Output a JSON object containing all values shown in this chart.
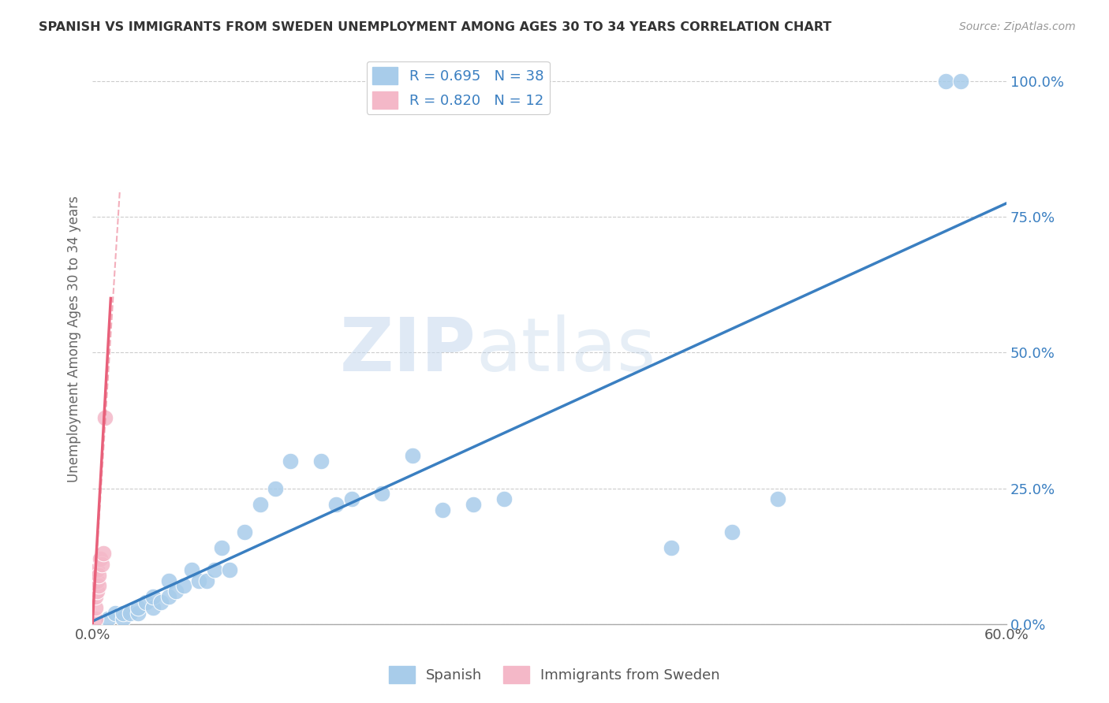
{
  "title": "SPANISH VS IMMIGRANTS FROM SWEDEN UNEMPLOYMENT AMONG AGES 30 TO 34 YEARS CORRELATION CHART",
  "source": "Source: ZipAtlas.com",
  "ylabel": "Unemployment Among Ages 30 to 34 years",
  "xlim": [
    0.0,
    0.6
  ],
  "ylim": [
    0.0,
    1.05
  ],
  "xticks": [
    0.0,
    0.1,
    0.2,
    0.3,
    0.4,
    0.5,
    0.6
  ],
  "xtick_labels": [
    "0.0%",
    "",
    "",
    "",
    "",
    "",
    "60.0%"
  ],
  "yticks": [
    0.0,
    0.25,
    0.5,
    0.75,
    1.0
  ],
  "ytick_labels": [
    "0.0%",
    "25.0%",
    "50.0%",
    "75.0%",
    "100.0%"
  ],
  "watermark_zip": "ZIP",
  "watermark_atlas": "atlas",
  "legend_blue_label": "R = 0.695   N = 38",
  "legend_pink_label": "R = 0.820   N = 12",
  "legend_bottom_blue": "Spanish",
  "legend_bottom_pink": "Immigrants from Sweden",
  "blue_color": "#a8ccea",
  "pink_color": "#f4b8c8",
  "line_blue_color": "#3a7fc1",
  "line_pink_color": "#e8607a",
  "text_color": "#3a7fc1",
  "blue_points_x": [
    0.01,
    0.015,
    0.02,
    0.02,
    0.025,
    0.03,
    0.03,
    0.035,
    0.04,
    0.04,
    0.045,
    0.05,
    0.05,
    0.055,
    0.06,
    0.065,
    0.07,
    0.075,
    0.08,
    0.085,
    0.09,
    0.1,
    0.11,
    0.12,
    0.13,
    0.15,
    0.16,
    0.17,
    0.19,
    0.21,
    0.23,
    0.25,
    0.27,
    0.38,
    0.42,
    0.45,
    0.56,
    0.57
  ],
  "blue_points_y": [
    0.01,
    0.02,
    0.01,
    0.02,
    0.02,
    0.02,
    0.03,
    0.04,
    0.03,
    0.05,
    0.04,
    0.05,
    0.08,
    0.06,
    0.07,
    0.1,
    0.08,
    0.08,
    0.1,
    0.14,
    0.1,
    0.17,
    0.22,
    0.25,
    0.3,
    0.3,
    0.22,
    0.23,
    0.24,
    0.31,
    0.21,
    0.22,
    0.23,
    0.14,
    0.17,
    0.23,
    1.0,
    1.0
  ],
  "pink_points_x": [
    0.002,
    0.002,
    0.002,
    0.003,
    0.003,
    0.003,
    0.004,
    0.004,
    0.005,
    0.006,
    0.007,
    0.008
  ],
  "pink_points_y": [
    0.01,
    0.03,
    0.05,
    0.06,
    0.08,
    0.1,
    0.07,
    0.09,
    0.12,
    0.11,
    0.13,
    0.38
  ],
  "blue_line_x": [
    0.0,
    0.6
  ],
  "blue_line_y": [
    0.005,
    0.775
  ],
  "pink_line_x": [
    0.0,
    0.012
  ],
  "pink_line_y": [
    0.0,
    0.6
  ]
}
